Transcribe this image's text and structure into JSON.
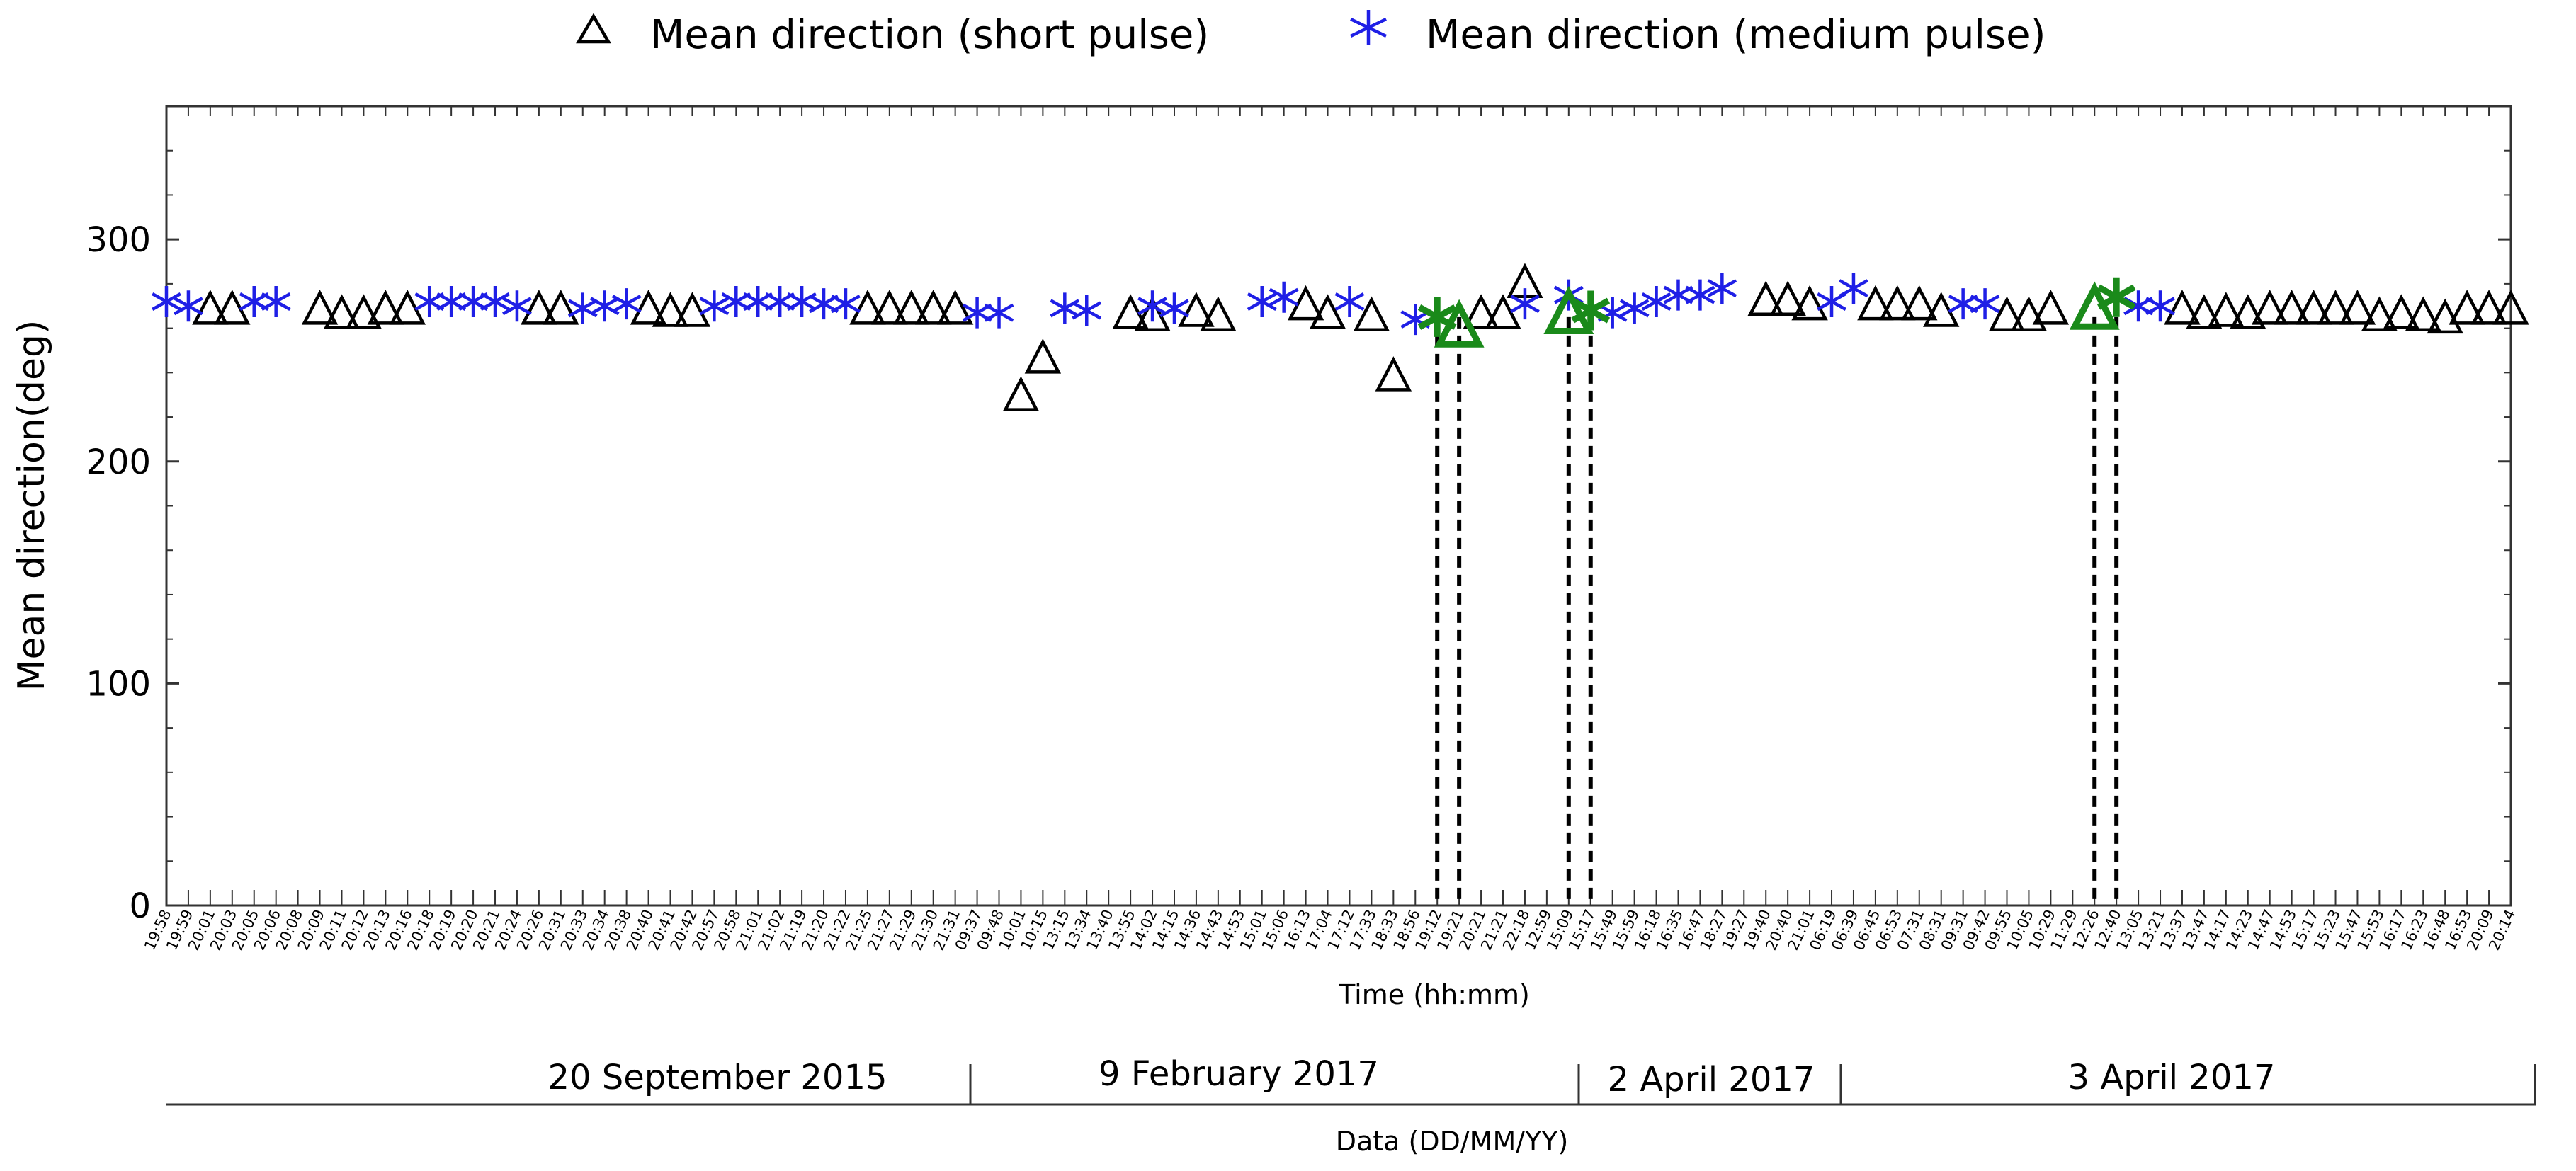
{
  "chart_data": {
    "type": "scatter",
    "legend": {
      "position": "top",
      "entries": [
        {
          "marker": "triangle-icon",
          "label": "Mean direction (short pulse)"
        },
        {
          "marker": "star-icon",
          "label": "Mean direction (medium pulse)"
        }
      ]
    },
    "colors": {
      "short": "#000000",
      "medium": "#1f1fe6",
      "highlight": "#1a8a1a",
      "axis": "#333333"
    },
    "xlabel": "Time (hh:mm)",
    "ylabel": "Mean direction(deg)",
    "ylim": [
      0,
      360
    ],
    "yticks": [
      0,
      100,
      200,
      300
    ],
    "grid": false,
    "date_axis_label": "Data (DD/MM/YY)",
    "dates": [
      "20 September 2015",
      "9 February 2017",
      "2 April 2017",
      "3 April 2017"
    ],
    "time_ticks": [
      "19:58",
      "19:59",
      "20:01",
      "20:03",
      "20:05",
      "20:06",
      "20:08",
      "20:09",
      "20:11",
      "20:12",
      "20:13",
      "20:16",
      "20:18",
      "20:19",
      "20:20",
      "20:21",
      "20:24",
      "20:26",
      "20:31",
      "20:33",
      "20:34",
      "20:38",
      "20:40",
      "20:41",
      "20:42",
      "20:57",
      "20:58",
      "21:01",
      "21:02",
      "21:19",
      "21:20",
      "21:22",
      "21:25",
      "21:27",
      "21:29",
      "21:30",
      "21:31",
      "09:37",
      "09:48",
      "10:01",
      "10:15",
      "13:15",
      "13:34",
      "13:40",
      "13:55",
      "14:02",
      "14:15",
      "14:36",
      "14:43",
      "14:53",
      "15:01",
      "15:06",
      "16:13",
      "17:04",
      "17:12",
      "17:33",
      "18:33",
      "18:56",
      "19:12",
      "19:21",
      "20:21",
      "21:21",
      "22:18",
      "12:59",
      "15:09",
      "15:17",
      "15:49",
      "15:59",
      "16:18",
      "16:35",
      "16:47",
      "18:27",
      "19:27",
      "19:40",
      "20:40",
      "21:01",
      "06:19",
      "06:39",
      "06:45",
      "06:53",
      "07:31",
      "08:31",
      "09:31",
      "09:42",
      "09:55",
      "10:05",
      "10:29",
      "11:29",
      "12:26",
      "12:40",
      "13:05",
      "13:21",
      "13:37",
      "13:47",
      "14:17",
      "14:23",
      "14:47",
      "14:53",
      "15:17",
      "15:23",
      "15:47",
      "15:53",
      "16:17",
      "16:23",
      "16:48",
      "16:53",
      "20:09",
      "20:14"
    ],
    "series": [
      {
        "name": "Mean direction (short pulse)",
        "marker": "triangle",
        "x": [
          "20:01",
          "20:03",
          "20:09",
          "20:11",
          "20:12",
          "20:13",
          "20:16",
          "20:26",
          "20:31",
          "20:40",
          "20:41",
          "20:42",
          "21:25",
          "21:27",
          "21:29",
          "21:30",
          "21:31",
          "10:01",
          "10:15",
          "13:55",
          "14:02",
          "14:36",
          "14:43",
          "16:13",
          "17:04",
          "17:33",
          "18:33",
          "20:21",
          "21:21",
          "22:18",
          "19:40",
          "20:40",
          "21:01",
          "06:45",
          "06:53",
          "07:31",
          "08:31",
          "09:55",
          "10:05",
          "10:29",
          "13:37",
          "13:47",
          "14:17",
          "14:23",
          "14:47",
          "14:53",
          "15:17",
          "15:23",
          "15:47",
          "15:53",
          "16:17",
          "16:23",
          "16:48",
          "16:53",
          "20:09",
          "20:14"
        ],
        "y": [
          268,
          268,
          268,
          266,
          266,
          268,
          268,
          268,
          268,
          268,
          267,
          267,
          268,
          268,
          268,
          268,
          268,
          229,
          246,
          266,
          265,
          267,
          265,
          270,
          266,
          265,
          238,
          266,
          266,
          280,
          272,
          272,
          270,
          270,
          270,
          270,
          267,
          265,
          265,
          268,
          268,
          266,
          267,
          266,
          268,
          268,
          268,
          268,
          268,
          265,
          266,
          265,
          264,
          268,
          268,
          268
        ]
      },
      {
        "name": "Mean direction (medium pulse)",
        "marker": "star",
        "x": [
          "19:58",
          "19:59",
          "20:05",
          "20:06",
          "20:18",
          "20:19",
          "20:20",
          "20:21",
          "20:24",
          "20:33",
          "20:34",
          "20:38",
          "20:57",
          "20:58",
          "21:01",
          "21:02",
          "21:19",
          "21:20",
          "21:22",
          "09:37",
          "09:48",
          "13:15",
          "13:34",
          "14:15",
          "15:01",
          "15:06",
          "15:09",
          "17:12",
          "18:56",
          "22:18",
          "15:49",
          "15:59",
          "16:18",
          "16:35",
          "16:47",
          "18:27",
          "06:19",
          "06:39",
          "09:31",
          "09:42",
          "13:05",
          "13:21",
          "14:02"
        ],
        "y": [
          272,
          270,
          272,
          272,
          272,
          272,
          272,
          272,
          270,
          269,
          270,
          271,
          270,
          272,
          272,
          272,
          272,
          271,
          271,
          267,
          267,
          269,
          268,
          269,
          272,
          274,
          275,
          272,
          264,
          271,
          267,
          269,
          272,
          275,
          275,
          278,
          272,
          278,
          271,
          271,
          270,
          270,
          270
        ]
      },
      {
        "name": "",
        "marker": "triangle",
        "highlight": true,
        "x": [
          "19:21",
          "15:09",
          "12:26"
        ],
        "y": [
          260,
          266,
          268
        ]
      },
      {
        "name": "",
        "marker": "star",
        "highlight": true,
        "x": [
          "19:12",
          "15:17",
          "12:40"
        ],
        "y": [
          265,
          268,
          274
        ]
      }
    ],
    "vertical_markers": [
      "19:12",
      "19:21",
      "15:09",
      "15:17",
      "12:26",
      "12:40"
    ]
  }
}
